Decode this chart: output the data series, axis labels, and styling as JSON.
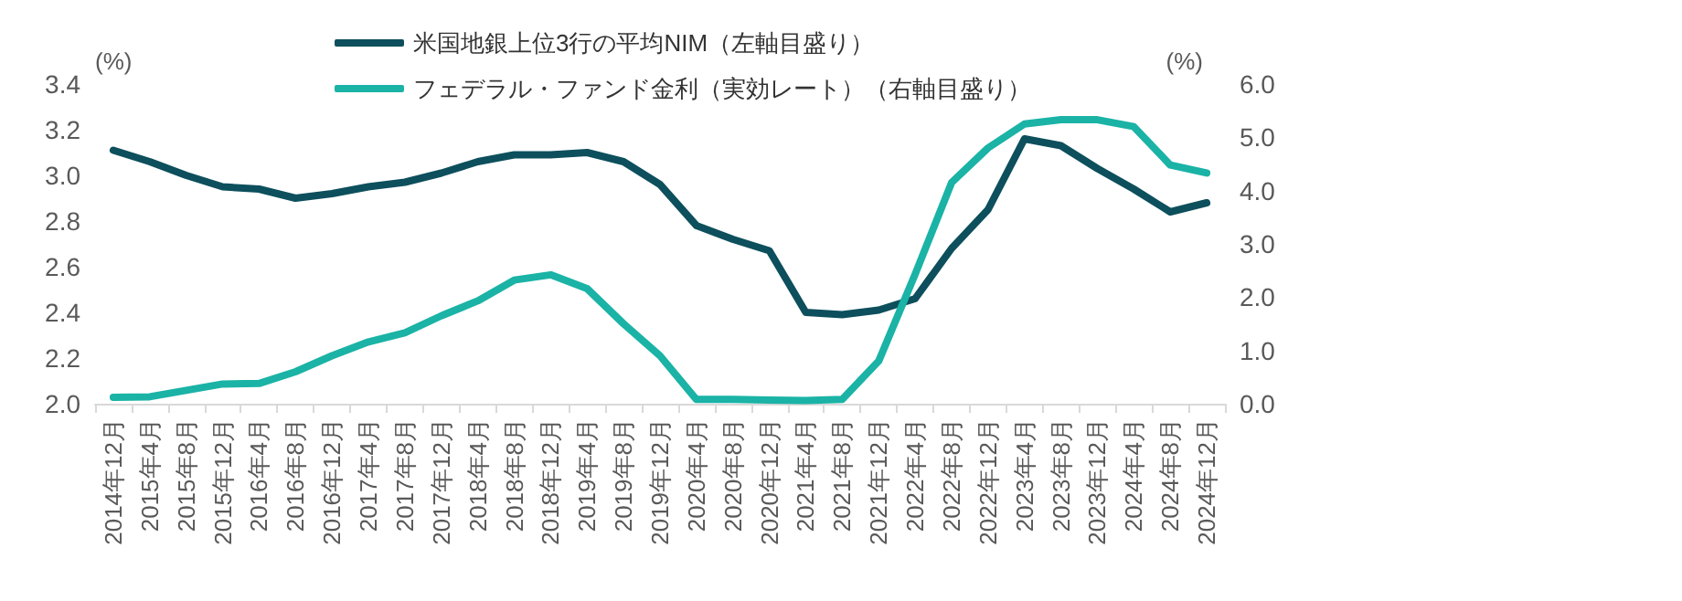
{
  "chart_data": {
    "type": "line",
    "ylabel": "(%)",
    "y2label": "(%)",
    "legend": "top",
    "grid": false,
    "marker": "none",
    "line_style": "solid",
    "categories": [
      "2014年12月",
      "2015年4月",
      "2015年8月",
      "2015年12月",
      "2016年4月",
      "2016年8月",
      "2016年12月",
      "2017年4月",
      "2017年8月",
      "2017年12月",
      "2018年4月",
      "2018年8月",
      "2018年12月",
      "2019年4月",
      "2019年8月",
      "2019年12月",
      "2020年4月",
      "2020年8月",
      "2020年12月",
      "2021年4月",
      "2021年8月",
      "2021年12月",
      "2022年4月",
      "2022年8月",
      "2022年12月",
      "2023年4月",
      "2023年8月",
      "2023年12月",
      "2024年4月",
      "2024年8月",
      "2024年12月"
    ],
    "ylim": [
      2.0,
      3.4
    ],
    "yticks": [
      {
        "value": 2,
        "label": "2.0"
      },
      2.2,
      2.4,
      2.6,
      2.8,
      {
        "value": 3,
        "label": "3.0"
      },
      3.2,
      3.4
    ],
    "y2lim": [
      0,
      6
    ],
    "y2ticks": [
      {
        "value": 0,
        "label": "0.0"
      },
      {
        "value": 1,
        "label": "1.0"
      },
      {
        "value": 2,
        "label": "2.0"
      },
      {
        "value": 3,
        "label": "3.0"
      },
      {
        "value": 4,
        "label": "4.0"
      },
      {
        "value": 5,
        "label": "5.0"
      },
      {
        "value": 6,
        "label": "6.0"
      }
    ],
    "series": [
      {
        "name": "米国地銀上位3行の平均NIM（左軸目盛り）",
        "color": "#0d4f5c",
        "values": [
          3.11,
          3.06,
          3.0,
          2.95,
          2.94,
          2.9,
          2.92,
          2.95,
          2.97,
          3.01,
          3.06,
          3.09,
          3.09,
          3.1,
          3.06,
          2.96,
          2.78,
          2.72,
          2.67,
          2.4,
          2.39,
          2.41,
          2.46,
          2.68,
          2.85,
          3.16,
          3.13,
          3.03,
          2.94,
          2.84,
          2.88
        ]
      },
      {
        "name": "フェデラル・ファンド金利（実効レート）（右軸目盛り）",
        "color": "#1ab3a6",
        "axis": "y2",
        "values": [
          0.12,
          0.13,
          0.25,
          0.37,
          0.38,
          0.6,
          0.9,
          1.16,
          1.33,
          1.65,
          1.93,
          2.32,
          2.42,
          2.16,
          1.5,
          0.9,
          0.08,
          0.08,
          0.07,
          0.06,
          0.08,
          0.8,
          2.43,
          4.15,
          4.8,
          5.25,
          5.33,
          5.33,
          5.2,
          4.48,
          4.33
        ]
      }
    ]
  }
}
